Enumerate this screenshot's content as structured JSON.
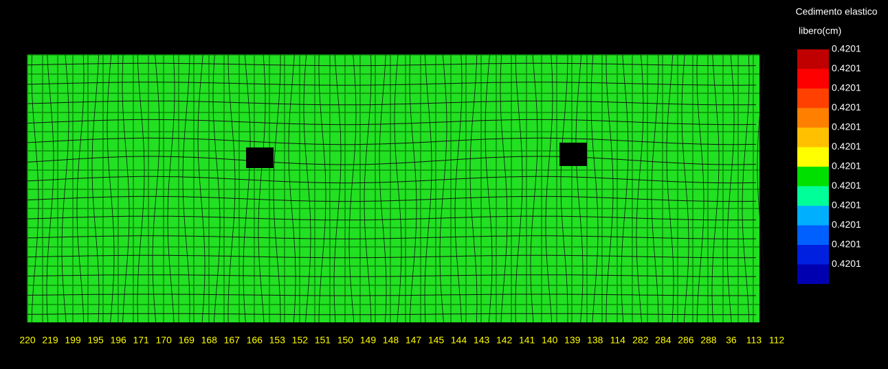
{
  "legend": {
    "title_lines": [
      "Cedimento elastico",
      "libero(cm)"
    ],
    "labels": [
      "0.4201",
      "0.4201",
      "0.4201",
      "0.4201",
      "0.4201",
      "0.4201",
      "0.4201",
      "0.4201",
      "0.4201",
      "0.4201",
      "0.4201",
      "0.4201"
    ],
    "colors": [
      "#c00000",
      "#ff0000",
      "#ff4000",
      "#ff8000",
      "#ffc000",
      "#ffff00",
      "#00e000",
      "#00ff99",
      "#00b0ff",
      "#0060ff",
      "#0020e0",
      "#0000b0"
    ]
  },
  "mesh": {
    "fill": "#22e022",
    "bottom_node_labels": [
      "220",
      "219",
      "199",
      "195",
      "196",
      "171",
      "170",
      "169",
      "168",
      "167",
      "166",
      "153",
      "152",
      "151",
      "150",
      "149",
      "148",
      "147",
      "145",
      "144",
      "143",
      "142",
      "141",
      "140",
      "139",
      "138",
      "114",
      "282",
      "284",
      "286",
      "288",
      "36",
      "113",
      "112"
    ]
  }
}
